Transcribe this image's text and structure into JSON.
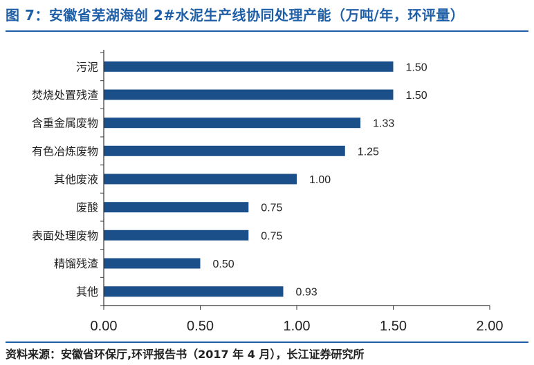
{
  "title": "图 7：安徽省芜湖海创 2#水泥生产线协同处理产能（万吨/年，环评量）",
  "source": "资料来源：安徽省环保厅,环评报告书（2017 年 4 月），长江证券研究所",
  "colors": {
    "bar": "#1b4f8a",
    "title": "#1f5fa8",
    "axis": "#333333"
  },
  "chart_data": {
    "type": "bar",
    "orientation": "horizontal",
    "categories": [
      "污泥",
      "焚烧处置残渣",
      "含重金属废物",
      "有色冶炼废物",
      "其他废液",
      "废酸",
      "表面处理废物",
      "精馏残渣",
      "其他"
    ],
    "values": [
      1.5,
      1.5,
      1.33,
      1.25,
      1.0,
      0.75,
      0.75,
      0.5,
      0.93
    ],
    "value_labels": [
      "1.50",
      "1.50",
      "1.33",
      "1.25",
      "1.00",
      "0.75",
      "0.75",
      "0.50",
      "0.93"
    ],
    "xlim": [
      0,
      2.0
    ],
    "xticks": [
      "0.00",
      "0.50",
      "1.00",
      "1.50",
      "2.00"
    ],
    "xtick_values": [
      0,
      0.5,
      1.0,
      1.5,
      2.0
    ],
    "grid": false,
    "legend": "none"
  }
}
